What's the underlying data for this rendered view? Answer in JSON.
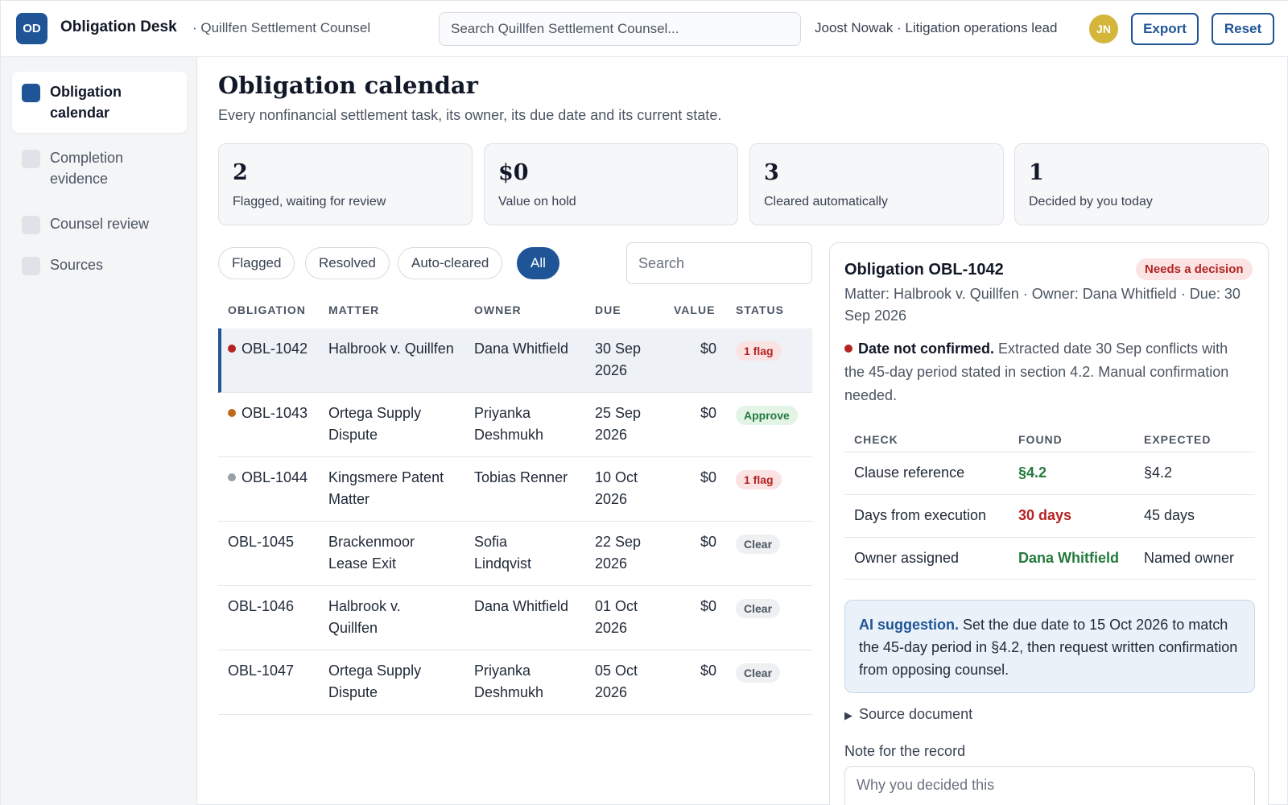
{
  "header": {
    "logo": "OD",
    "app_name": "Obligation Desk",
    "org": "· Quillfen Settlement Counsel",
    "search_placeholder": "Search Quillfen Settlement Counsel...",
    "user": "Joost Nowak · Litigation operations lead",
    "avatar": "JN",
    "export_label": "Export",
    "reset_label": "Reset"
  },
  "sidebar": {
    "items": [
      {
        "label": "Obligation calendar",
        "active": true
      },
      {
        "label": "Completion evidence",
        "active": false
      },
      {
        "label": "Counsel review",
        "active": false
      },
      {
        "label": "Sources",
        "active": false
      }
    ]
  },
  "page": {
    "title": "Obligation calendar",
    "subtitle": "Every nonfinancial settlement task, its owner, its due date and its current state."
  },
  "stats": [
    {
      "value": "2",
      "label": "Flagged, waiting for review"
    },
    {
      "value": "$0",
      "label": "Value on hold"
    },
    {
      "value": "3",
      "label": "Cleared automatically"
    },
    {
      "value": "1",
      "label": "Decided by you today"
    }
  ],
  "filters": {
    "chips": [
      "Flagged",
      "Resolved",
      "Auto-cleared",
      "All"
    ],
    "active": "All",
    "search_placeholder": "Search"
  },
  "table": {
    "columns": [
      "OBLIGATION",
      "MATTER",
      "OWNER",
      "DUE",
      "VALUE",
      "STATUS"
    ],
    "rows": [
      {
        "id": "OBL-1042",
        "matter": "Halbrook v. Quillfen",
        "owner": "Dana Whitfield",
        "due": "30 Sep 2026",
        "value": "$0",
        "status": "1 flag",
        "kind": "flag",
        "dot": "#b42323"
      },
      {
        "id": "OBL-1043",
        "matter": "Ortega Supply Dispute",
        "owner": "Priyanka Deshmukh",
        "due": "25 Sep 2026",
        "value": "$0",
        "status": "Approve",
        "kind": "approve",
        "dot": "#c0691d"
      },
      {
        "id": "OBL-1044",
        "matter": "Kingsmere Patent Matter",
        "owner": "Tobias Renner",
        "due": "10 Oct 2026",
        "value": "$0",
        "status": "1 flag",
        "kind": "flag",
        "dot": "#9aa0a8"
      },
      {
        "id": "OBL-1045",
        "matter": "Brackenmoor Lease Exit",
        "owner": "Sofia Lindqvist",
        "due": "22 Sep 2026",
        "value": "$0",
        "status": "Clear",
        "kind": "clear",
        "dot": ""
      },
      {
        "id": "OBL-1046",
        "matter": "Halbrook v. Quillfen",
        "owner": "Dana Whitfield",
        "due": "01 Oct 2026",
        "value": "$0",
        "status": "Clear",
        "kind": "clear",
        "dot": ""
      },
      {
        "id": "OBL-1047",
        "matter": "Ortega Supply Dispute",
        "owner": "Priyanka Deshmukh",
        "due": "05 Oct 2026",
        "value": "$0",
        "status": "Clear",
        "kind": "clear",
        "dot": ""
      }
    ]
  },
  "detail": {
    "title": "Obligation OBL-1042",
    "badge": "Needs a decision",
    "meta": "Matter: Halbrook v. Quillfen · Owner: Dana Whitfield · Due: 30 Sep 2026",
    "issue_title": "Date not confirmed.",
    "issue_text": "Extracted date 30 Sep conflicts with the 45-day period stated in section 4.2. Manual confirmation needed.",
    "check_columns": [
      "CHECK",
      "FOUND",
      "EXPECTED"
    ],
    "checks": [
      {
        "check": "Clause reference",
        "found": "§4.2",
        "expected": "§4.2",
        "ok": true
      },
      {
        "check": "Days from execution",
        "found": "30 days",
        "expected": "45 days",
        "ok": false
      },
      {
        "check": "Owner assigned",
        "found": "Dana Whitfield",
        "expected": "Named owner",
        "ok": true
      }
    ],
    "ai_title": "AI suggestion.",
    "ai_text": "Set the due date to 15 Oct 2026 to match the 45-day period in §4.2, then request written confirmation from opposing counsel.",
    "source_label": "Source document",
    "note_label": "Note for the record",
    "note_placeholder": "Why you decided this"
  },
  "colors": {
    "accent": "#1f5597",
    "flag": "#b42323",
    "ok": "#237a3d",
    "avatar": "#d4b63b"
  }
}
